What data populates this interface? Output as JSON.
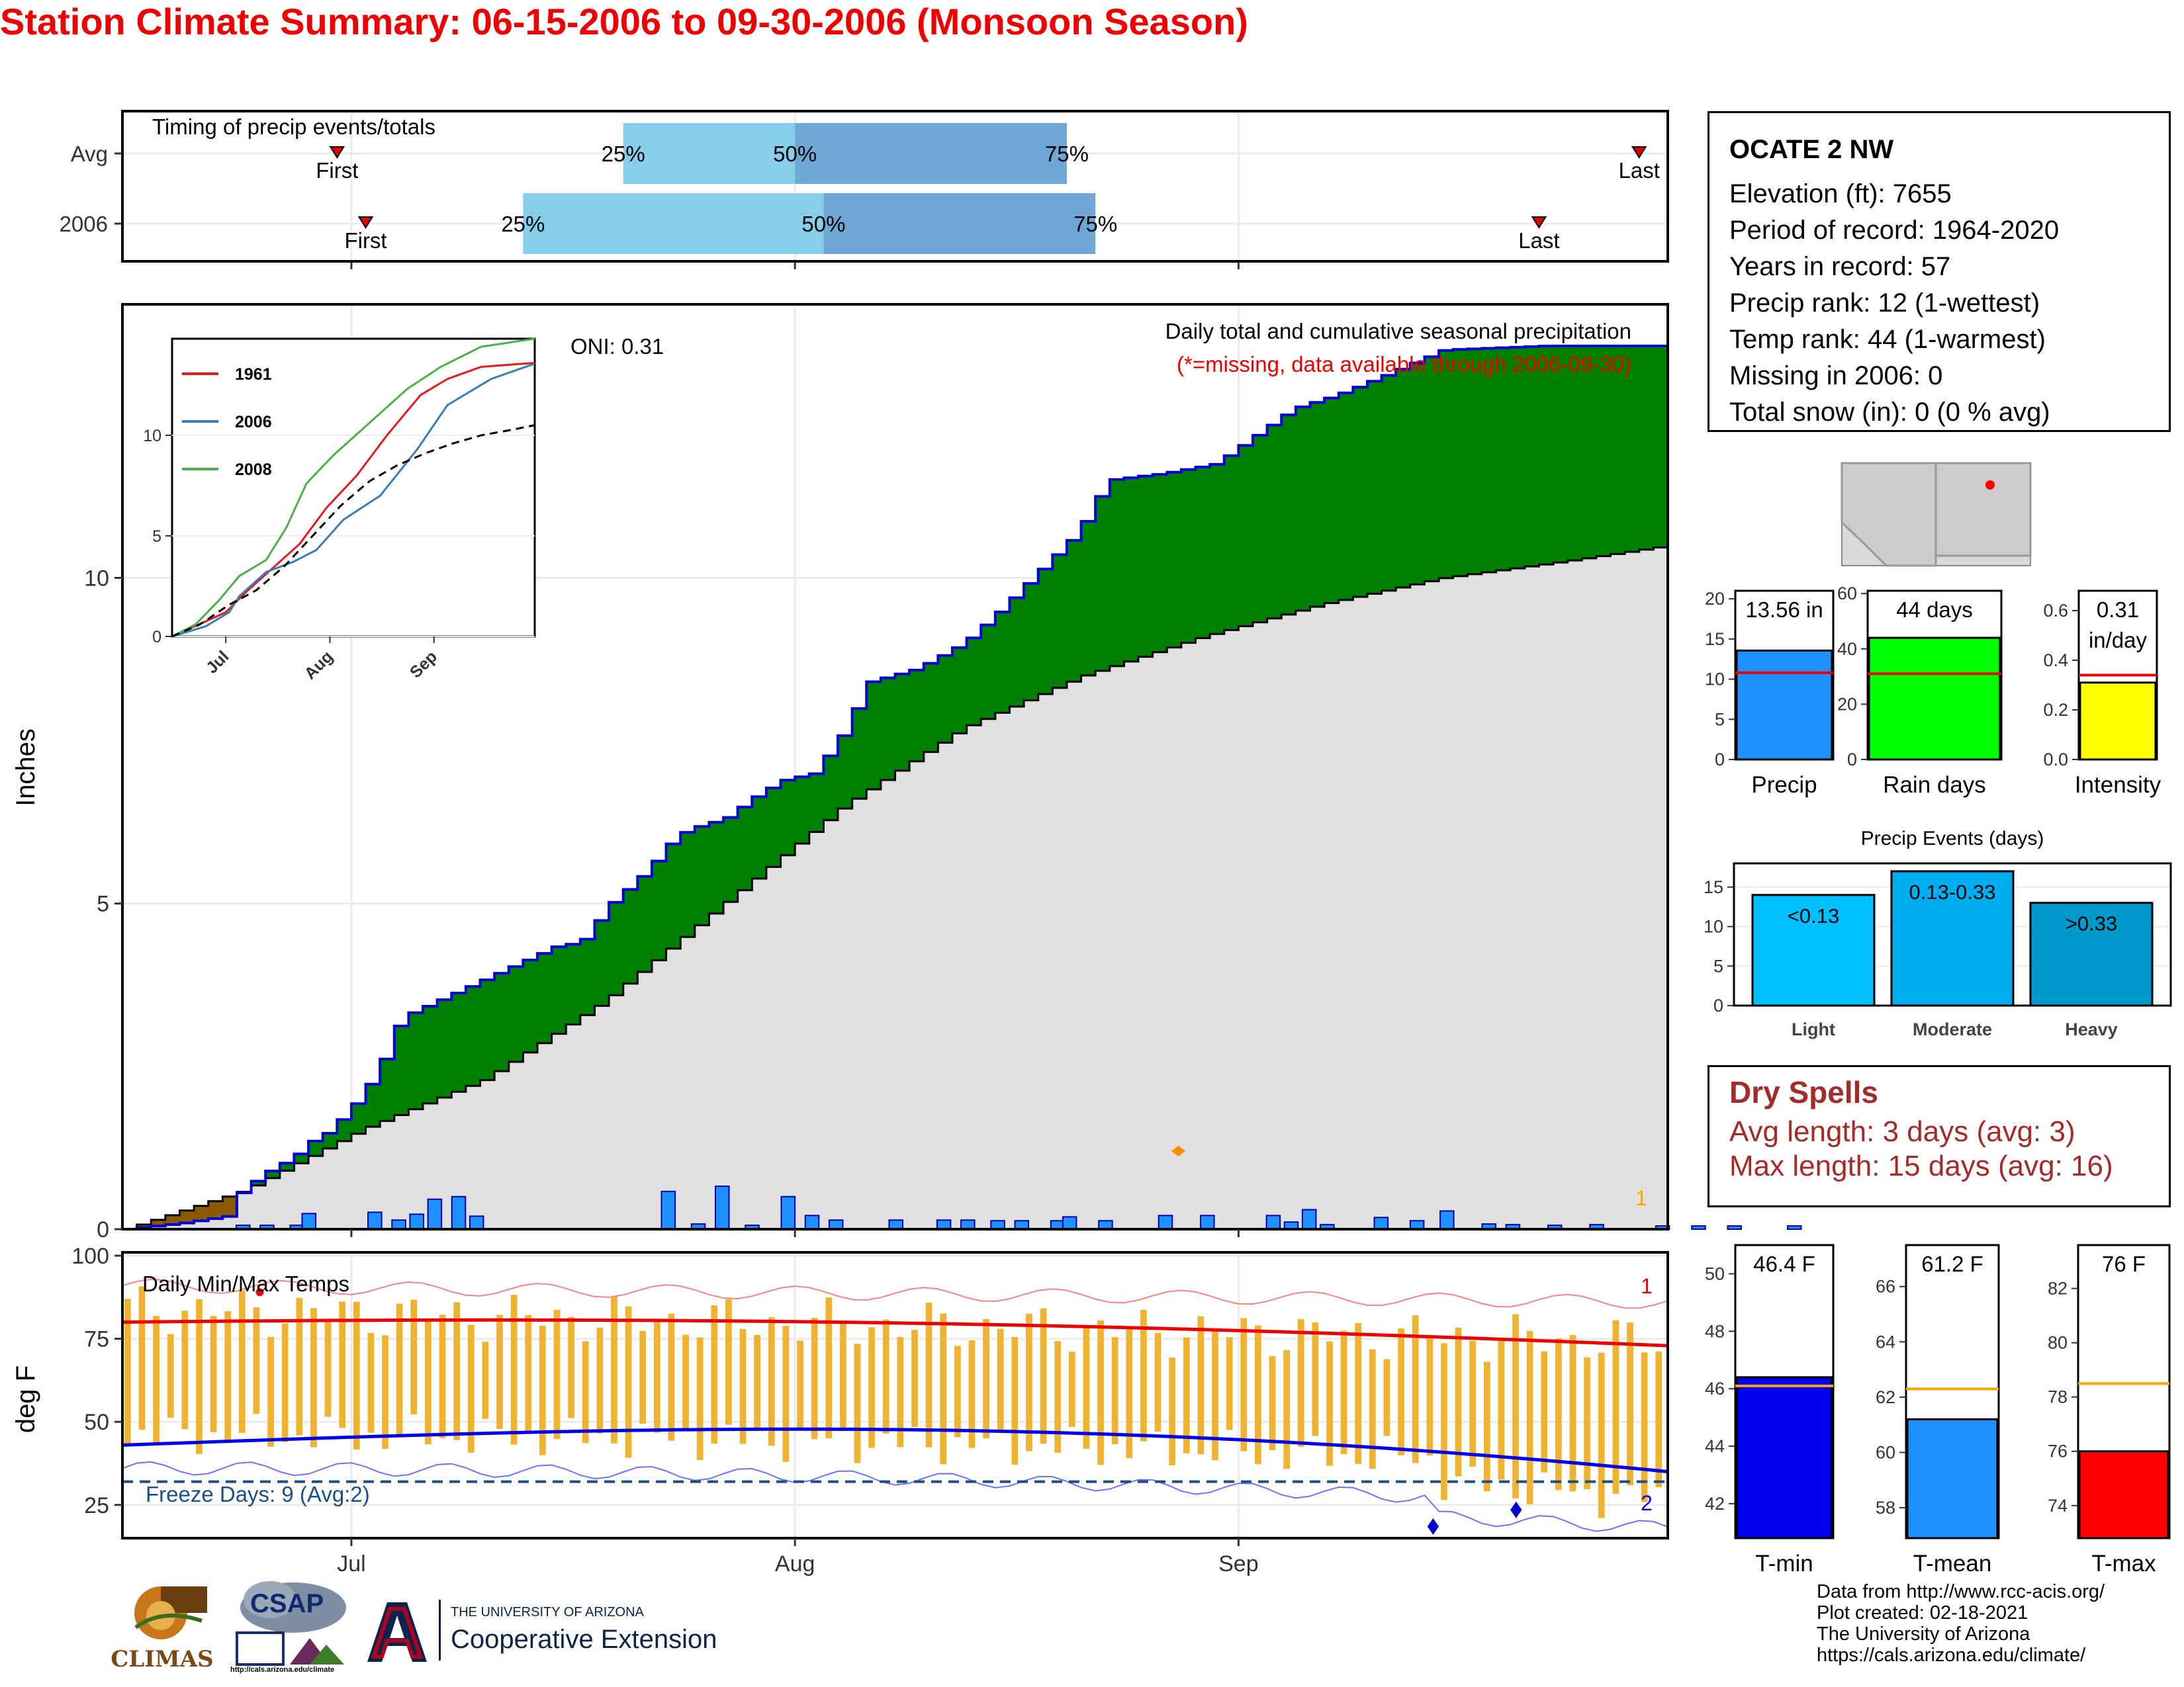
{
  "title": "Station Climate Summary: 06-15-2006 to 09-30-2006 (Monsoon Season)",
  "timing": {
    "label": "Timing of precip events/totals",
    "rows": [
      {
        "name": "Avg",
        "first": "06-30",
        "q25": "07-20",
        "q50": "08-01",
        "q75": "08-20",
        "last": "09-29"
      },
      {
        "name": "2006",
        "first": "07-02",
        "q25": "07-13",
        "q50": "08-03",
        "q75": "08-22",
        "last": "09-22"
      }
    ],
    "first_label": "First",
    "last_label": "Last",
    "pct_labels": [
      "25%",
      "50%",
      "75%"
    ]
  },
  "station": {
    "name": "OCATE 2 NW",
    "lines": [
      "Elevation (ft): 7655",
      "Period of record: 1964-2020",
      "Years in record: 57",
      "Precip rank: 12 (1-wettest)",
      "Temp rank: 44 (1-warmest)",
      "Missing in 2006: 0",
      "Total snow (in): 0 (0 % avg)"
    ]
  },
  "main_chart": {
    "ylabel": "Inches",
    "annotation1": "Daily total and cumulative seasonal precipitation",
    "annotation2": "(*=missing, data available through 2006-09-30)",
    "oni": "ONI: 0.31",
    "corner_count": "1",
    "y_ticks": [
      0,
      5,
      10
    ],
    "x_ticks": [
      "Jul",
      "Aug",
      "Sep"
    ],
    "colors": {
      "surplus": "#008000",
      "deficit": "#8b5a00",
      "normal": "#e0e0e0",
      "bars": "#1e90ff",
      "line": "#0000dd"
    }
  },
  "chart_data": [
    {
      "type": "area",
      "title": "Daily total and cumulative seasonal precipitation",
      "ylabel": "Inches",
      "ylim": [
        0,
        14.2
      ],
      "x_range": [
        "06-15",
        "09-30"
      ],
      "series": [
        {
          "name": "2006 cumulative",
          "points": [
            [
              0,
              0
            ],
            [
              10,
              0.1
            ],
            [
              17,
              0.2
            ],
            [
              19,
              0.55
            ],
            [
              23,
              0.85
            ],
            [
              28,
              1.1
            ],
            [
              31,
              1.35
            ],
            [
              34,
              1.5
            ],
            [
              38,
              1.9
            ],
            [
              42,
              2.4
            ],
            [
              46,
              3.25
            ],
            [
              52,
              3.5
            ],
            [
              72,
              4.35
            ],
            [
              76,
              4.4
            ],
            [
              81,
              5.0
            ],
            [
              84,
              5.25
            ],
            [
              87,
              5.5
            ],
            [
              92,
              6.05
            ],
            [
              96,
              6.2
            ],
            [
              100,
              6.3
            ],
            [
              106,
              6.7
            ],
            [
              110,
              6.9
            ],
            [
              115,
              7.0
            ],
            [
              120,
              7.65
            ],
            [
              124,
              8.4
            ],
            [
              132,
              8.6
            ],
            [
              140,
              9.0
            ],
            [
              146,
              9.5
            ],
            [
              159,
              10.7
            ],
            [
              164,
              11.5
            ],
            [
              173,
              11.6
            ],
            [
              182,
              11.75
            ],
            [
              195,
              12.6
            ],
            [
              202,
              12.8
            ],
            [
              210,
              13.1
            ],
            [
              215,
              13.3
            ],
            [
              220,
              13.5
            ],
            [
              237,
              13.56
            ],
            [
              258,
              13.56
            ]
          ]
        },
        {
          "name": "Avg cumulative",
          "points": [
            [
              0,
              0
            ],
            [
              20,
              0.6
            ],
            [
              40,
              1.55
            ],
            [
              60,
              2.3
            ],
            [
              80,
              3.5
            ],
            [
              100,
              5.0
            ],
            [
              120,
              6.5
            ],
            [
              140,
              7.7
            ],
            [
              160,
              8.5
            ],
            [
              180,
              9.1
            ],
            [
              200,
              9.6
            ],
            [
              220,
              10.0
            ],
            [
              240,
              10.25
            ],
            [
              258,
              10.5
            ]
          ]
        }
      ],
      "daily_precip": [
        [
          19,
          0.06
        ],
        [
          23,
          0.06
        ],
        [
          28,
          0.06
        ],
        [
          30,
          0.24
        ],
        [
          41,
          0.26
        ],
        [
          45,
          0.14
        ],
        [
          48,
          0.23
        ],
        [
          51,
          0.46
        ],
        [
          55,
          0.5
        ],
        [
          58,
          0.2
        ],
        [
          90,
          0.58
        ],
        [
          95,
          0.08
        ],
        [
          99,
          0.66
        ],
        [
          104,
          0.06
        ],
        [
          110,
          0.5
        ],
        [
          114,
          0.21
        ],
        [
          118,
          0.14
        ],
        [
          128,
          0.14
        ],
        [
          136,
          0.14
        ],
        [
          140,
          0.14
        ],
        [
          145,
          0.13
        ],
        [
          149,
          0.13
        ],
        [
          155,
          0.13
        ],
        [
          157,
          0.19
        ],
        [
          163,
          0.13
        ],
        [
          173,
          0.21
        ],
        [
          180,
          0.21
        ],
        [
          191,
          0.21
        ],
        [
          194,
          0.11
        ],
        [
          197,
          0.3
        ],
        [
          200,
          0.07
        ],
        [
          209,
          0.18
        ],
        [
          215,
          0.13
        ],
        [
          220,
          0.28
        ],
        [
          227,
          0.08
        ],
        [
          231,
          0.07
        ],
        [
          238,
          0.06
        ],
        [
          245,
          0.07
        ],
        [
          256,
          0.05
        ],
        [
          262,
          0.05
        ],
        [
          268,
          0.05
        ],
        [
          278,
          0.05
        ]
      ]
    },
    {
      "type": "line",
      "title": "",
      "legend": [
        "1961",
        "2006",
        "2008"
      ],
      "y_ticks": [
        0,
        5,
        10
      ],
      "x_ticks": [
        "Jul",
        "Aug",
        "Sep"
      ]
    },
    {
      "type": "bar",
      "categories": [
        "Precip",
        "Rain days",
        "Intensity"
      ],
      "values": [
        13.56,
        44,
        0.31
      ],
      "labels": [
        "13.56 in",
        "44 days",
        "0.31\nin/day"
      ],
      "averages": [
        10.8,
        31,
        0.34
      ],
      "ylims": [
        [
          0,
          21
        ],
        [
          0,
          61
        ],
        [
          0,
          0.68
        ]
      ],
      "yticks": [
        [
          0,
          5,
          10,
          15,
          20
        ],
        [
          0,
          20,
          40,
          60
        ],
        [
          0.0,
          0.2,
          0.4,
          0.6
        ]
      ],
      "colors": [
        "#1e90ff",
        "#00ff00",
        "#ffff00"
      ]
    },
    {
      "type": "bar",
      "title": "Precip Events (days)",
      "categories": [
        "Light",
        "Moderate",
        "Heavy"
      ],
      "values": [
        14,
        17,
        13
      ],
      "labels": [
        "<0.13",
        "0.13-0.33",
        ">0.33"
      ],
      "ylim": [
        0,
        18
      ],
      "yticks": [
        0,
        5,
        10,
        15
      ],
      "colors": [
        "#00bfff",
        "#00aeef",
        "#0099cc"
      ]
    },
    {
      "type": "line",
      "title": "Daily Min/Max Temps",
      "ylabel": "deg F",
      "ylim": [
        15,
        101
      ],
      "y_ticks": [
        25,
        50,
        75,
        100
      ],
      "x_ticks": [
        "Jul",
        "Aug",
        "Sep"
      ],
      "freeze_threshold": 32,
      "freeze_label": "Freeze Days: 9 (Avg:2)",
      "corner_top": "1",
      "corner_bottom": "2"
    },
    {
      "type": "bar",
      "categories": [
        "T-min",
        "T-mean",
        "T-max"
      ],
      "values": [
        46.4,
        61.2,
        76
      ],
      "labels": [
        "46.4 F",
        "61.2 F",
        "76 F"
      ],
      "averages": [
        46.1,
        62.3,
        78.5
      ],
      "ylims": [
        [
          40.8,
          51
        ],
        [
          56.9,
          67.5
        ],
        [
          72.8,
          83.6
        ]
      ],
      "yticks": [
        [
          42,
          44,
          46,
          48,
          50
        ],
        [
          58,
          60,
          62,
          64,
          66
        ],
        [
          74,
          76,
          78,
          80,
          82
        ]
      ],
      "colors": [
        "#0000ee",
        "#1e90ff",
        "#ff0000"
      ]
    }
  ],
  "dry_spells": {
    "title": "Dry Spells",
    "avg": "Avg length: 3 days (avg: 3)",
    "max": "Max length: 15 days (avg: 16)"
  },
  "credits": [
    "Data from http://www.rcc-acis.org/",
    "Plot created: 02-18-2021",
    "The University of Arizona",
    "https://cals.arizona.edu/climate/"
  ],
  "logos": {
    "climas": "CLIMAS",
    "csap": "CSAP",
    "csap_url": "http://cals.arizona.edu/climate",
    "ua_small": "THE UNIVERSITY OF ARIZONA",
    "ua_big": "Cooperative Extension"
  }
}
